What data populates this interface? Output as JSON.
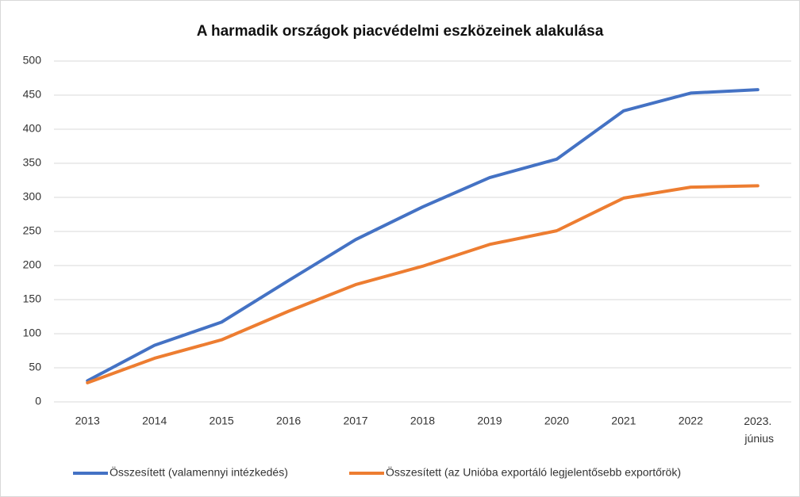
{
  "chart_data": {
    "type": "line",
    "title": "A harmadik országok piacvédelmi eszközeinek alakulása",
    "categories": [
      "2013",
      "2014",
      "2015",
      "2016",
      "2017",
      "2018",
      "2019",
      "2020",
      "2021",
      "2022",
      "2023. június"
    ],
    "series": [
      {
        "name": "Összesített (valamennyi intézkedés)",
        "color": "#4472c4",
        "values": [
          31,
          83,
          117,
          178,
          238,
          286,
          329,
          356,
          427,
          453,
          458
        ]
      },
      {
        "name": "Összesített (az Unióba exportáló legjelentősebb exportőrök)",
        "color": "#ed7d31",
        "values": [
          28,
          64,
          91,
          133,
          172,
          199,
          231,
          251,
          299,
          315,
          317
        ]
      }
    ],
    "ylim": [
      0,
      500
    ],
    "yticks": [
      0,
      50,
      100,
      150,
      200,
      250,
      300,
      350,
      400,
      450,
      500
    ],
    "grid": true,
    "legend": "bottom"
  }
}
